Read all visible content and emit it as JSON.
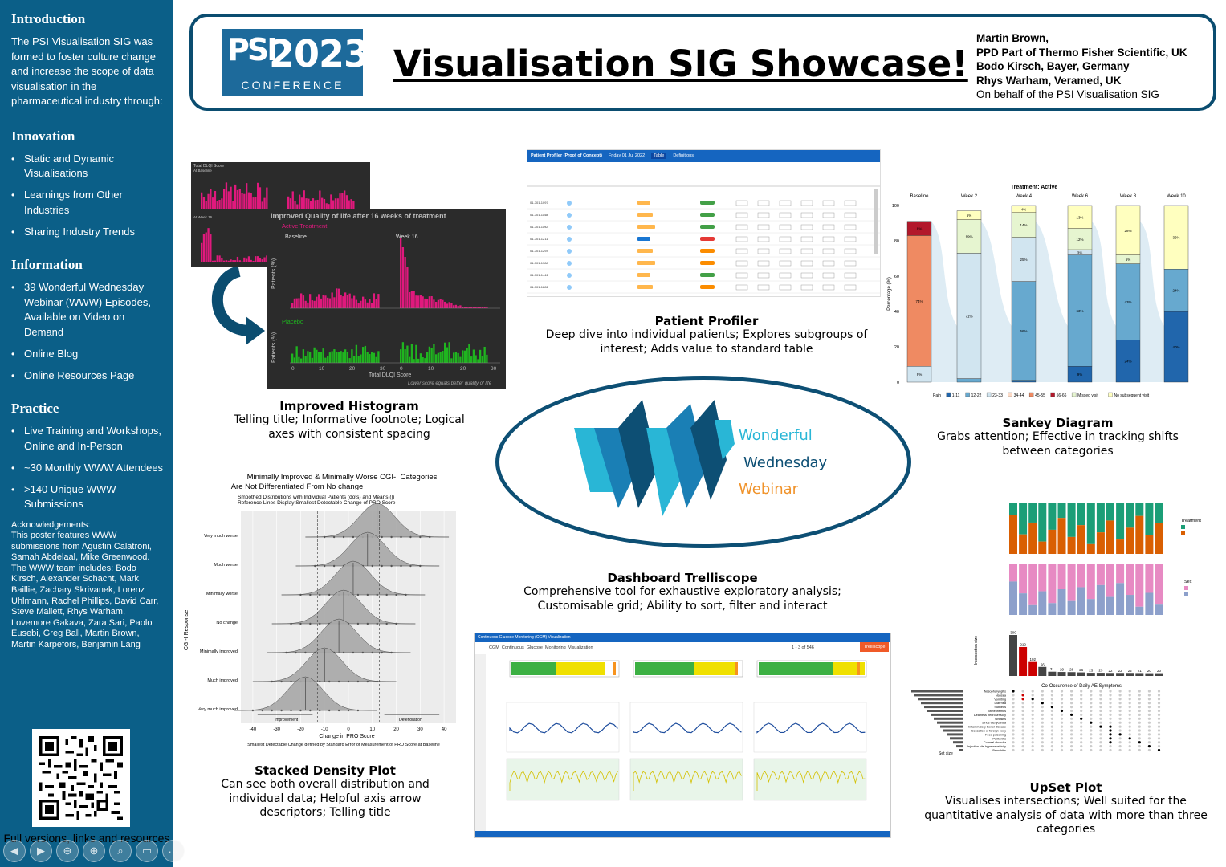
{
  "sidebar": {
    "intro_heading": "Introduction",
    "intro_text": "The PSI Visualisation SIG was formed to foster culture change and increase the scope of data visualisation in the pharmaceutical industry through:",
    "innovation_heading": "Innovation",
    "innovation_items": [
      "Static and Dynamic Visualisations",
      "Learnings from Other Industries",
      "Sharing Industry Trends"
    ],
    "information_heading": "Information",
    "information_items": [
      "39 Wonderful Wednesday Webinar (WWW) Episodes, Available on Video on Demand",
      "Online Blog",
      "Online Resources Page"
    ],
    "practice_heading": "Practice",
    "practice_items": [
      "Live Training and Workshops, Online and In-Person",
      "~30 Monthly WWW Attendees",
      ">140 Unique WWW Submissions"
    ],
    "ack_1": "Acknowledgements:",
    "ack_2": "This poster features WWW submissions from Agustin Calatroni, Samah Abdelaal, Mike Greenwood.",
    "ack_3": "The WWW team includes: Bodo Kirsch, Alexander Schacht, Mark Baillie, Zachary Skrivanek, Lorenz Uhlmann, Rachel Phillips, David Carr, Steve Mallett, Rhys Warham, Lovemore Gakava, Zara Sari, Paolo Eusebi, Greg Ball, Martin Brown, Martin Karpefors, Benjamin Lang",
    "full_versions": "Full versions, links and resources"
  },
  "header": {
    "logo_year": "2023",
    "logo_psi": "PSI",
    "logo_conf": "CONFERENCE",
    "title": "Visualisation SIG Showcase!",
    "author_1": "Martin Brown,",
    "author_2": "PPD Part of Thermo Fisher Scientific, UK",
    "author_3": "Bodo Kirsch, Bayer, Germany",
    "author_4": "Rhys Warham, Veramed, UK",
    "author_5": "On behalf of the PSI Visualisation SIG"
  },
  "histogram": {
    "back_title": "Total DLQI Score",
    "back_sub1": "At Baseline",
    "back_sub2": "At Week 16",
    "title": "Improved Quality of life after 16 weeks of treatment",
    "active": "Active Treatment",
    "placebo": "Placebo",
    "baseline": "Baseline",
    "week16": "Week 16",
    "ylabel": "Patients (%)",
    "xlabel": "Total DLQI Score",
    "footnote": "Lower score equals better quality of life",
    "caption_title": "Improved Histogram",
    "caption_desc": "Telling title; Informative footnote; Logical axes with consistent spacing"
  },
  "profiler": {
    "title": "Patient Profiler (Proof of Concept)",
    "date": "Friday 01 Jul 2022",
    "tab1": "Table",
    "tab2": "Definitions",
    "caption_title": "Patient Profiler",
    "caption_desc": "Deep dive into individual patients; Explores subgroups of interest; Adds value to standard table"
  },
  "sankey": {
    "title": "Treatment: Active",
    "ylabel": "Percentage (%)",
    "weeks": [
      "Baseline",
      "Week 2",
      "Week 4",
      "Week 6",
      "Week 8",
      "Week 10"
    ],
    "legend": [
      "Pain",
      "1-11",
      "12-22",
      "23-33",
      "34-44",
      "45-55",
      "56-66",
      "Missed visit",
      "No subsequent visit"
    ],
    "caption_title": "Sankey Diagram",
    "caption_desc": "Grabs attention; Effective in tracking shifts between categories"
  },
  "www": {
    "line1": "Wonderful",
    "line2": "Wednesday",
    "line3": "Webinar"
  },
  "density": {
    "title1": "Minimally Improved & Minimally Worse CGI-I Categories",
    "title2": "Are Not Differentiated From No change",
    "sub1": "Smoothed Distributions with Individual Patients (dots) and Means (|)",
    "sub2": "Reference Lines Display Smallest Detectable Change of PRO Score",
    "categories": [
      "Very much worse",
      "Much worse",
      "Minimally worse",
      "No change",
      "Minimally improved",
      "Much improved",
      "Very much improved"
    ],
    "ylabel": "CGI-I Response",
    "xlabel": "Change in PRO Score",
    "footnote": "Smallest Detectable Change defined by Standard Error of Measurement of PRO Score at Baseline",
    "improvement": "Improvement",
    "deterioration": "Deterioration",
    "caption_title": "Stacked Density Plot",
    "caption_desc": "Can see both overall distribution and individual data; Helpful axis arrow descriptors; Telling title"
  },
  "dashboard": {
    "title": "Continuous Glucose Monitoring (CGM) Visualization",
    "subtitle": "CGM_Continuous_Glucose_Monitoring_Visualization",
    "trelliscope": "Trelliscope",
    "paging": "1 - 3 of 546",
    "caption_title": "Dashboard Trelliscope",
    "caption_desc": "Comprehensive tool for exhaustive exploratory analysis; Customisable grid; Ability to sort, filter and interact"
  },
  "upset": {
    "treatment": "Treatment",
    "sex": "Sex",
    "intersection_size": "Intersection size",
    "co_title": "Co-Occurence of Daily AE Symptoms",
    "set_size": "Set size",
    "bar_values": [
      "300",
      "212",
      "102",
      "66",
      "31",
      "29",
      "28",
      "26",
      "23",
      "23",
      "22",
      "22",
      "22",
      "21",
      "20",
      "20"
    ],
    "symptoms": [
      "Nasopharyngitis",
      "Nausea",
      "Vomiting",
      "Diarrhea",
      "Subileus",
      "Meteorismus",
      "Deafness neurosensory",
      "Sinusitis",
      "Sinus tachycardia",
      "Inflammatory bowel disease",
      "Sensation of foreign body",
      "Food poisoning",
      "Peritonitis",
      "Corneal disorder",
      "Injection site hypersensitivity",
      "Bronchitis"
    ],
    "caption_title": "UpSet Plot",
    "caption_desc": "Visualises intersections; Well suited for the quantitative analysis of data with more than three categories"
  },
  "colors": {
    "sidebar": "#0b5f88",
    "header_border": "#0b4d70",
    "magenta": "#e0197d",
    "green": "#1fb51f",
    "sankey_dark": "#2166ac",
    "sankey_mid": "#67a9cf",
    "sankey_light": "#d1e5f0",
    "sankey_orange": "#ef8a62",
    "sankey_red": "#b2182b"
  }
}
